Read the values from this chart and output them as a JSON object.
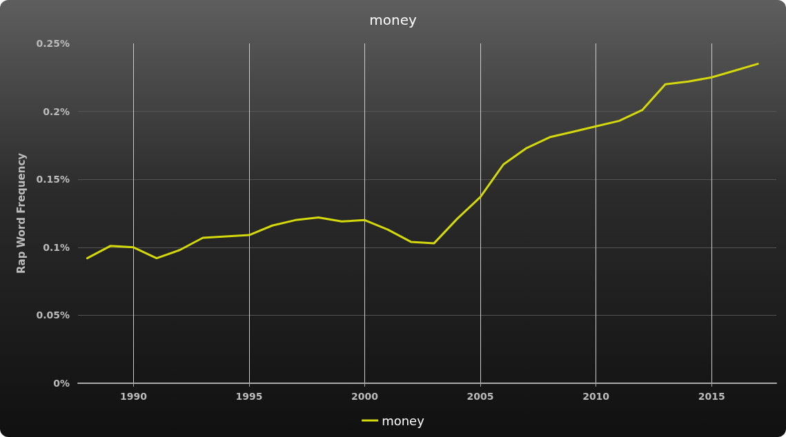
{
  "chart_data": {
    "type": "line",
    "title": "money",
    "ylabel": "Rap Word Frequency",
    "x": [
      1988,
      1989,
      1990,
      1991,
      1992,
      1993,
      1994,
      1995,
      1996,
      1997,
      1998,
      1999,
      2000,
      2001,
      2002,
      2003,
      2004,
      2005,
      2006,
      2007,
      2008,
      2009,
      2010,
      2011,
      2012,
      2013,
      2014,
      2015,
      2016,
      2017
    ],
    "series": [
      {
        "name": "money",
        "color": "#d4d90a",
        "values": [
          0.092,
          0.101,
          0.1,
          0.092,
          0.098,
          0.107,
          0.108,
          0.109,
          0.116,
          0.12,
          0.122,
          0.119,
          0.12,
          0.113,
          0.104,
          0.103,
          0.121,
          0.137,
          0.161,
          0.173,
          0.181,
          0.185,
          0.189,
          0.193,
          0.201,
          0.22,
          0.222,
          0.225,
          0.23,
          0.235
        ]
      }
    ],
    "xlim": [
      1987.6,
      2017.8
    ],
    "xticks": [
      1990,
      1995,
      2000,
      2005,
      2010,
      2015
    ],
    "ylim": [
      0,
      0.25
    ],
    "yticks": [
      {
        "value": 0,
        "label": "0%"
      },
      {
        "value": 0.05,
        "label": "0.05%"
      },
      {
        "value": 0.1,
        "label": "0.1%"
      },
      {
        "value": 0.15,
        "label": "0.15%"
      },
      {
        "value": 0.2,
        "label": "0.2%"
      },
      {
        "value": 0.25,
        "label": "0.25%"
      }
    ],
    "grid": true,
    "legend": "bottom",
    "marker": "none",
    "line_style": "solid"
  }
}
